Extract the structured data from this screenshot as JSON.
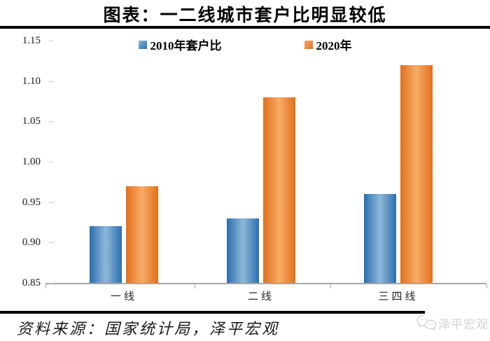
{
  "title": "图表：一二线城市套户比明显较低",
  "chart_data": {
    "type": "bar",
    "categories": [
      "一线",
      "二线",
      "三四线"
    ],
    "series": [
      {
        "name": "2010年套户比",
        "values": [
          0.92,
          0.93,
          0.96
        ],
        "color_edge": "#2a6fae",
        "color_mid": "#8fb8d9"
      },
      {
        "name": "2020年",
        "values": [
          0.97,
          1.08,
          1.12
        ],
        "color_edge": "#e2701c",
        "color_mid": "#f6ac67"
      }
    ],
    "title": "图表：一二线城市套户比明显较低",
    "xlabel": "",
    "ylabel": "",
    "ylim": [
      0.85,
      1.15
    ],
    "yticks": [
      0.85,
      0.9,
      0.95,
      1.0,
      1.05,
      1.1,
      1.15
    ],
    "grid": "off",
    "legend_position": "top"
  },
  "source_note": "资料来源：国家统计局，泽平宏观",
  "watermark": {
    "label": "泽平宏观",
    "icon": "wechat-icon",
    "color": "#d2d2d2"
  },
  "colors": {
    "axis_line": "#a6a6a6",
    "rule": "#000000",
    "background": "#ffffff"
  }
}
